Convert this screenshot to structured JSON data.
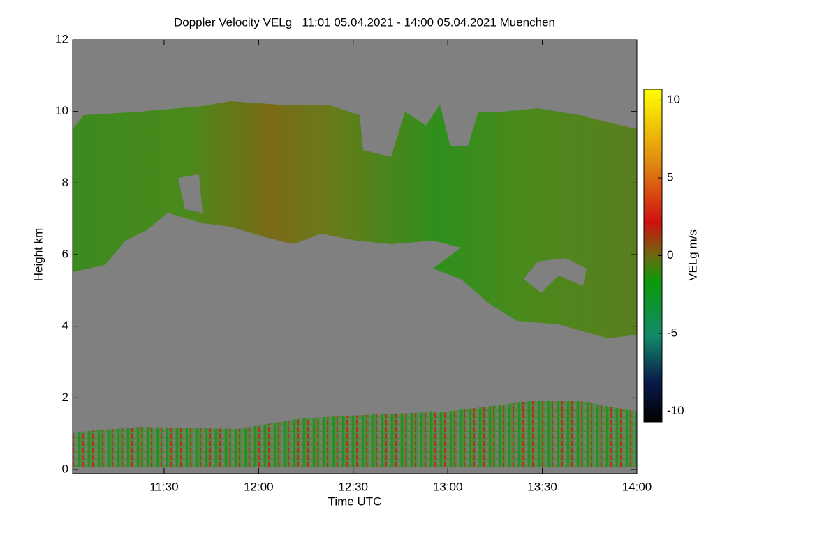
{
  "chart_data": {
    "type": "heatmap",
    "title": "Doppler Velocity VELg   11:01 05.04.2021 - 14:00 05.04.2021 Muenchen",
    "x_label": "Time UTC",
    "y_label": "Height km",
    "xlim": [
      661,
      840
    ],
    "xticks": [
      {
        "value": 690,
        "label": "11:30"
      },
      {
        "value": 720,
        "label": "12:00"
      },
      {
        "value": 750,
        "label": "12:30"
      },
      {
        "value": 780,
        "label": "13:00"
      },
      {
        "value": 810,
        "label": "13:30"
      },
      {
        "value": 840,
        "label": "14:00"
      }
    ],
    "ylim": [
      0,
      12
    ],
    "yticks": [
      0,
      2,
      4,
      6,
      8,
      10,
      12
    ],
    "colorbar": {
      "label": "VELg m/s",
      "lim": [
        -10.7,
        10.7
      ],
      "ticks": [
        -10,
        -5,
        0,
        5,
        10
      ]
    }
  }
}
